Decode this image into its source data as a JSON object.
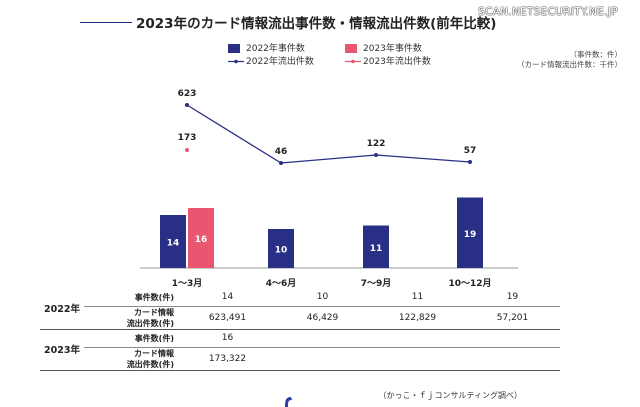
{
  "title": "2023年のカード情報流出事件数・情報流出件数(前年比較)",
  "watermark": "SCAN.NETSECURITY.NE.JP",
  "legend": [
    {
      "label": "2022年事件数",
      "kind": "bar",
      "color": "#2a2f86"
    },
    {
      "label": "2023年事件数",
      "kind": "bar",
      "color": "#e8566f"
    },
    {
      "label": "2022年流出件数",
      "kind": "line",
      "color": "#2a2f86"
    },
    {
      "label": "2023年流出件数",
      "kind": "line",
      "color": "#e8566f"
    }
  ],
  "unit_notes": [
    "（事件数：件）",
    "（カード情報流出件数：千件）"
  ],
  "chart_data": {
    "type": "bar",
    "title": "2023年のカード情報流出事件数・情報流出件数(前年比較)",
    "categories": [
      "1〜3月",
      "4〜6月",
      "7〜9月",
      "10〜12月"
    ],
    "bar_series": [
      {
        "name": "2022年事件数",
        "values": [
          14,
          10,
          11,
          19
        ],
        "color": "#2a2f86"
      },
      {
        "name": "2023年事件数",
        "values": [
          16,
          null,
          null,
          null
        ],
        "color": "#e8566f"
      }
    ],
    "line_series": [
      {
        "name": "2022年流出件数",
        "values": [
          623,
          46,
          122,
          57
        ],
        "color": "#2a2f86"
      },
      {
        "name": "2023年流出件数",
        "values": [
          173,
          null,
          null,
          null
        ],
        "color": "#e8566f"
      }
    ],
    "bar_units": "件",
    "line_units": "千件",
    "bar_ylim": [
      0,
      20
    ],
    "line_ylim": [
      0,
      700
    ]
  },
  "table": {
    "rows": [
      {
        "year": "2022年",
        "metric": "事件数(件)",
        "values": [
          "14",
          "10",
          "11",
          "19"
        ]
      },
      {
        "year": "",
        "metric": "カード情報\n流出件数(件)",
        "values": [
          "623,491",
          "46,429",
          "122,829",
          "57,201"
        ]
      },
      {
        "year": "2023年",
        "metric": "事件数(件)",
        "values": [
          "16",
          "",
          "",
          ""
        ]
      },
      {
        "year": "",
        "metric": "カード情報\n流出件数(件)",
        "values": [
          "173,322",
          "",
          "",
          ""
        ]
      }
    ]
  },
  "source": "（かっこ・ｆｊコンサルティング調べ）"
}
